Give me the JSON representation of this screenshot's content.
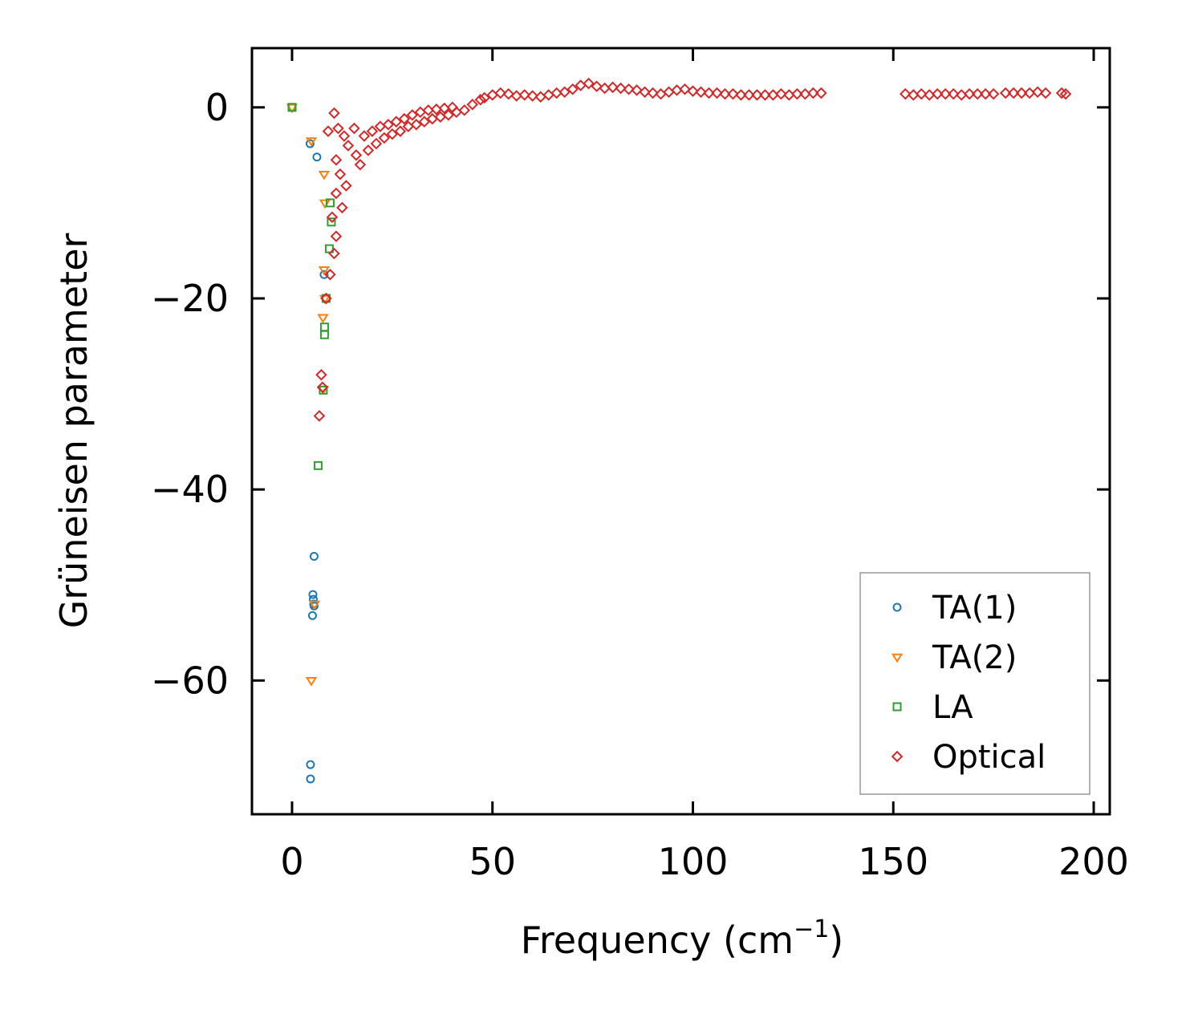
{
  "chart_data": {
    "type": "scatter",
    "xlabel": "Frequency (cm",
    "xlabel_sup": "−1",
    "xlabel_close": ")",
    "ylabel": "Grüneisen parameter",
    "xlim": [
      -10,
      204
    ],
    "ylim": [
      -74,
      6.2
    ],
    "xticks": [
      0,
      50,
      100,
      150,
      200
    ],
    "xtick_labels": [
      "0",
      "50",
      "100",
      "150",
      "200"
    ],
    "yticks": [
      0,
      -20,
      -40,
      -60
    ],
    "ytick_labels": [
      "0",
      "−20",
      "−40",
      "−60"
    ],
    "grid": false,
    "legend_position": "lower-right",
    "series": [
      {
        "name": "TA(1)",
        "marker": "circle",
        "color": "#1f77b4",
        "points": [
          [
            0,
            0
          ],
          [
            4.5,
            -3.8
          ],
          [
            6.2,
            -5.2
          ],
          [
            8,
            -17.5
          ],
          [
            5.5,
            -47
          ],
          [
            5.2,
            -51
          ],
          [
            5.3,
            -51.5
          ],
          [
            5.4,
            -52
          ],
          [
            5.5,
            -52.2
          ],
          [
            5.1,
            -53.2
          ],
          [
            4.6,
            -68.8
          ],
          [
            4.6,
            -70.3
          ]
        ]
      },
      {
        "name": "TA(2)",
        "marker": "triangle-down",
        "color": "#ff7f0e",
        "points": [
          [
            0,
            0
          ],
          [
            4.8,
            -3.5
          ],
          [
            8,
            -7
          ],
          [
            8.2,
            -10
          ],
          [
            8,
            -17
          ],
          [
            8.2,
            -20
          ],
          [
            7.7,
            -22
          ],
          [
            7.8,
            -29.5
          ],
          [
            5.6,
            -52
          ],
          [
            4.8,
            -60
          ]
        ]
      },
      {
        "name": "LA",
        "marker": "square",
        "color": "#2ca02c",
        "points": [
          [
            0,
            0
          ],
          [
            9.5,
            -10
          ],
          [
            9.8,
            -12
          ],
          [
            9.3,
            -14.8
          ],
          [
            8.5,
            -20
          ],
          [
            8.1,
            -23
          ],
          [
            8.1,
            -23.8
          ],
          [
            7.8,
            -29.6
          ],
          [
            6.5,
            -37.5
          ]
        ]
      },
      {
        "name": "Optical",
        "marker": "diamond",
        "color": "#d62728",
        "points": [
          [
            10.5,
            -0.6
          ],
          [
            9,
            -2.5
          ],
          [
            11.5,
            -2.2
          ],
          [
            13,
            -3
          ],
          [
            15.5,
            -2.2
          ],
          [
            11,
            -5.5
          ],
          [
            12,
            -7
          ],
          [
            13.5,
            -8.2
          ],
          [
            11,
            -9
          ],
          [
            12.5,
            -10.5
          ],
          [
            10,
            -11.5
          ],
          [
            11,
            -13.5
          ],
          [
            10.5,
            -15.3
          ],
          [
            9.5,
            -17.5
          ],
          [
            8.5,
            -20
          ],
          [
            7.3,
            -28
          ],
          [
            7.6,
            -29.3
          ],
          [
            6.8,
            -32.3
          ],
          [
            14,
            -4
          ],
          [
            16,
            -5
          ],
          [
            18,
            -3
          ],
          [
            20,
            -2.5
          ],
          [
            22,
            -2
          ],
          [
            24,
            -1.8
          ],
          [
            26,
            -1.5
          ],
          [
            28,
            -1.2
          ],
          [
            30,
            -0.8
          ],
          [
            32,
            -0.5
          ],
          [
            34,
            -0.3
          ],
          [
            36,
            -0.2
          ],
          [
            38,
            -0.1
          ],
          [
            40,
            0
          ],
          [
            17,
            -6
          ],
          [
            19,
            -4.5
          ],
          [
            21,
            -3.8
          ],
          [
            23,
            -3.2
          ],
          [
            25,
            -2.8
          ],
          [
            27,
            -2.5
          ],
          [
            29,
            -2
          ],
          [
            31,
            -1.8
          ],
          [
            33,
            -1.5
          ],
          [
            35,
            -1.2
          ],
          [
            37,
            -1
          ],
          [
            39,
            -0.8
          ],
          [
            41,
            -0.5
          ],
          [
            43,
            -0.3
          ],
          [
            45,
            0.3
          ],
          [
            47,
            0.8
          ],
          [
            48,
            1
          ],
          [
            50,
            1.3
          ],
          [
            52,
            1.5
          ],
          [
            54,
            1.4
          ],
          [
            56,
            1.2
          ],
          [
            58,
            1.3
          ],
          [
            60,
            1.2
          ],
          [
            62,
            1.1
          ],
          [
            64,
            1.3
          ],
          [
            66,
            1.5
          ],
          [
            68,
            1.6
          ],
          [
            70,
            1.9
          ],
          [
            72,
            2.3
          ],
          [
            74,
            2.5
          ],
          [
            76,
            2.2
          ],
          [
            78,
            2
          ],
          [
            80,
            2.1
          ],
          [
            82,
            2
          ],
          [
            84,
            1.9
          ],
          [
            86,
            1.8
          ],
          [
            88,
            1.6
          ],
          [
            90,
            1.5
          ],
          [
            92,
            1.4
          ],
          [
            94,
            1.6
          ],
          [
            96,
            1.8
          ],
          [
            98,
            1.9
          ],
          [
            100,
            1.7
          ],
          [
            102,
            1.6
          ],
          [
            104,
            1.5
          ],
          [
            106,
            1.5
          ],
          [
            108,
            1.4
          ],
          [
            110,
            1.4
          ],
          [
            112,
            1.3
          ],
          [
            114,
            1.3
          ],
          [
            116,
            1.3
          ],
          [
            118,
            1.3
          ],
          [
            120,
            1.3
          ],
          [
            122,
            1.4
          ],
          [
            124,
            1.3
          ],
          [
            126,
            1.4
          ],
          [
            128,
            1.4
          ],
          [
            130,
            1.5
          ],
          [
            132,
            1.5
          ],
          [
            153,
            1.4
          ],
          [
            155,
            1.3
          ],
          [
            157,
            1.4
          ],
          [
            159,
            1.3
          ],
          [
            161,
            1.4
          ],
          [
            163,
            1.4
          ],
          [
            165,
            1.4
          ],
          [
            167,
            1.3
          ],
          [
            169,
            1.4
          ],
          [
            171,
            1.4
          ],
          [
            173,
            1.4
          ],
          [
            175,
            1.4
          ],
          [
            178,
            1.5
          ],
          [
            180,
            1.5
          ],
          [
            182,
            1.5
          ],
          [
            184,
            1.5
          ],
          [
            186,
            1.6
          ],
          [
            188,
            1.5
          ],
          [
            192,
            1.5
          ],
          [
            193,
            1.4
          ]
        ]
      }
    ]
  }
}
